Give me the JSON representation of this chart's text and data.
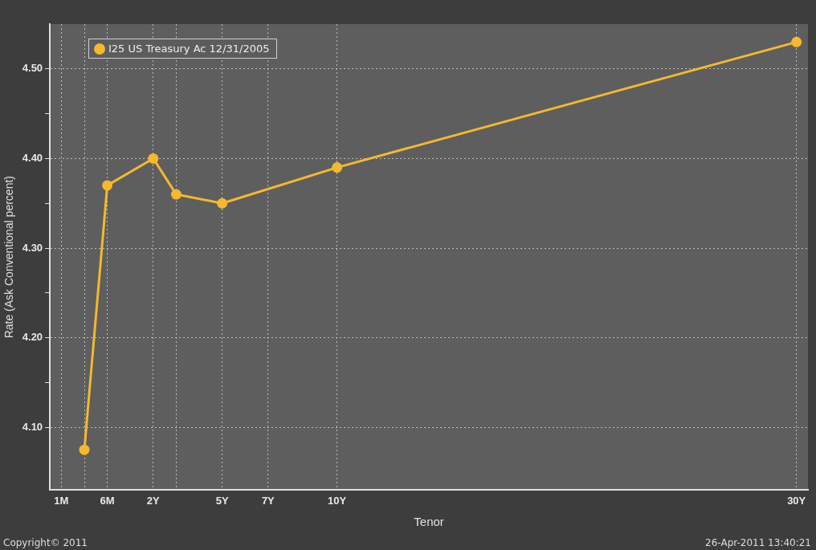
{
  "chart_data": {
    "type": "line",
    "xlabel": "Tenor",
    "ylabel": "Rate (Ask Conventional percent)",
    "categories": [
      "1M",
      null,
      "6M",
      null,
      "2Y",
      null,
      null,
      "5Y",
      null,
      "7Y",
      null,
      null,
      "10Y",
      null,
      null,
      null,
      null,
      null,
      null,
      null,
      null,
      null,
      null,
      null,
      null,
      null,
      null,
      null,
      null,
      null,
      null,
      null,
      "30Y"
    ],
    "series": [
      {
        "name": "I25  US Treasury Ac 12/31/2005",
        "color": "#f5b82e",
        "values": [
          null,
          4.075,
          4.37,
          null,
          4.4,
          4.36,
          null,
          4.35,
          null,
          null,
          null,
          null,
          4.39,
          null,
          null,
          null,
          null,
          null,
          null,
          null,
          null,
          null,
          null,
          null,
          null,
          null,
          null,
          null,
          null,
          null,
          null,
          null,
          4.53
        ]
      }
    ],
    "ylim": [
      4.03,
      4.55
    ],
    "yticks": [
      {
        "value": 4.1,
        "label": "4.10"
      },
      {
        "value": 4.15,
        "label": null
      },
      {
        "value": 4.2,
        "label": "4.20"
      },
      {
        "value": 4.25,
        "label": null
      },
      {
        "value": 4.3,
        "label": "4.30"
      },
      {
        "value": 4.35,
        "label": null
      },
      {
        "value": 4.4,
        "label": "4.40"
      },
      {
        "value": 4.45,
        "label": null
      },
      {
        "value": 4.5,
        "label": "4.50"
      }
    ],
    "grid": true,
    "legend": "top left",
    "marker": "circle",
    "line_style": "solid",
    "annotations": [
      "Copyright© 2011",
      "26-Apr-2011 13:40:21"
    ]
  }
}
